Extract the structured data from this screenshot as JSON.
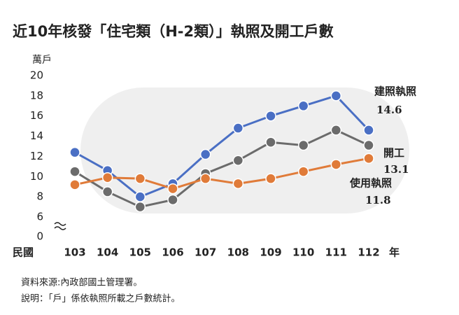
{
  "chart_data": {
    "type": "line",
    "title": "近10年核發「住宅類（H-2類）」執照及開工戶數",
    "ylabel": "萬戶",
    "xlabel_left": "民國",
    "xlabel_right": "年",
    "categories": [
      "103",
      "104",
      "105",
      "106",
      "107",
      "108",
      "109",
      "110",
      "111",
      "112"
    ],
    "series": [
      {
        "name": "建照執照",
        "color": "#4a6fc4",
        "values": [
          12.4,
          10.6,
          8.0,
          9.3,
          12.2,
          14.8,
          16.0,
          17.0,
          18.0,
          14.6
        ]
      },
      {
        "name": "開工",
        "color": "#6b6b6b",
        "values": [
          10.5,
          8.5,
          7.0,
          7.7,
          10.3,
          11.6,
          13.4,
          13.1,
          14.6,
          13.1
        ]
      },
      {
        "name": "使用執照",
        "color": "#e07b39",
        "values": [
          9.2,
          9.9,
          9.8,
          8.8,
          9.8,
          9.3,
          9.8,
          10.5,
          11.2,
          11.8
        ]
      }
    ],
    "ylim": [
      6,
      20
    ],
    "yticks": [
      0,
      6,
      8,
      10,
      12,
      14,
      16,
      18,
      20
    ],
    "axis_break": true,
    "notes": [
      "資料來源:內政部國土管理署。",
      "說明：「戶」係依執照所載之戶數統計。"
    ]
  }
}
